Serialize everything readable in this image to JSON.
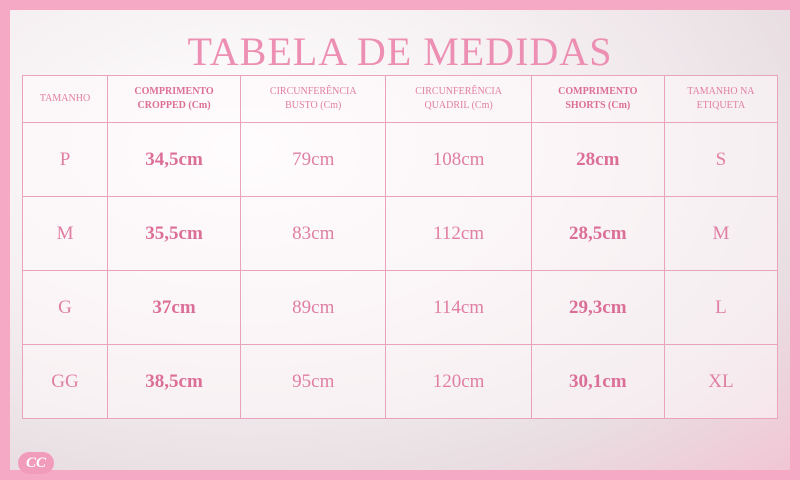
{
  "header": {
    "title": "TABELA DE MEDIDAS"
  },
  "table": {
    "columns": [
      [
        "TAMANHO"
      ],
      [
        "COMPRIMENTO",
        "CROPPED (Cm)"
      ],
      [
        "CIRCUNFERÊNCIA",
        "BUSTO (Cm)"
      ],
      [
        "CIRCUNFERÊNCIA",
        "QUADRIL (Cm)"
      ],
      [
        "COMPRIMENTO",
        "SHORTS (Cm)"
      ],
      [
        "TAMANHO NA",
        "ETIQUETA"
      ]
    ],
    "rows": [
      [
        "P",
        "34,5cm",
        "79cm",
        "108cm",
        "28cm",
        "S"
      ],
      [
        "M",
        "35,5cm",
        "83cm",
        "112cm",
        "28,5cm",
        "M"
      ],
      [
        "G",
        "37cm",
        "89cm",
        "114cm",
        "29,3cm",
        "L"
      ],
      [
        "GG",
        "38,5cm",
        "95cm",
        "120cm",
        "30,1cm",
        "XL"
      ]
    ]
  },
  "logo": {
    "text": "CC"
  }
}
